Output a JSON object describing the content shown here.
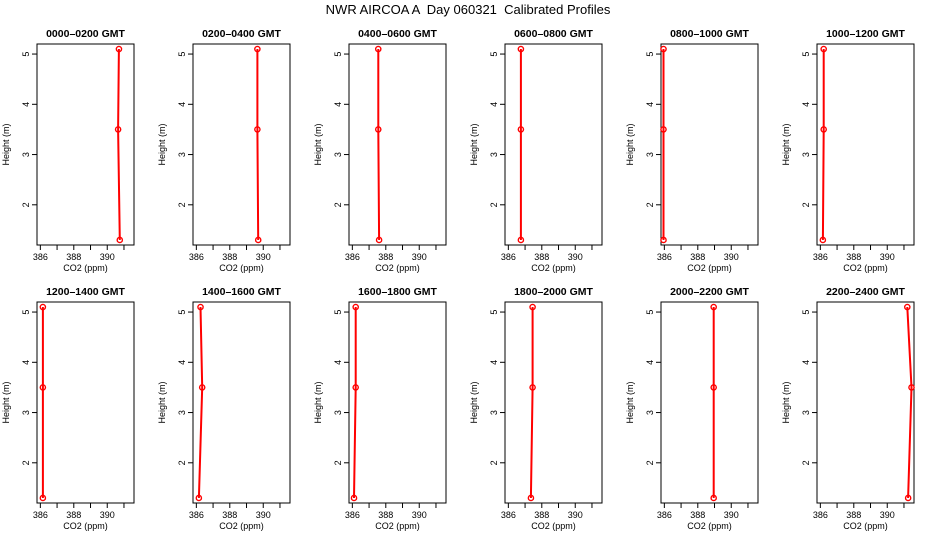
{
  "figure": {
    "title": "NWR AIRCOA A  Day 060321  Calibrated Profiles"
  },
  "colors": {
    "series": "#ff0000",
    "axis": "#000000",
    "background": "#ffffff"
  },
  "chart_data": {
    "type": "line",
    "layout": "2 rows x 6 panels",
    "xlabel": "CO2 (ppm)",
    "ylabel": "Height (m)",
    "xlim": [
      385.8,
      391.6
    ],
    "ylim": [
      1.2,
      5.2
    ],
    "xticks": [
      386,
      388,
      390
    ],
    "xminor": [
      387,
      389,
      391
    ],
    "yticks": [
      2,
      3,
      4,
      5
    ],
    "heights": [
      1.3,
      3.5,
      5.1
    ],
    "panels": [
      {
        "title": "0000–0200 GMT",
        "co2": [
          390.75,
          390.65,
          390.7
        ]
      },
      {
        "title": "0200–0400 GMT",
        "co2": [
          389.7,
          389.65,
          389.65
        ]
      },
      {
        "title": "0400–0600 GMT",
        "co2": [
          387.6,
          387.55,
          387.55
        ]
      },
      {
        "title": "0600–0800 GMT",
        "co2": [
          386.75,
          386.75,
          386.75
        ]
      },
      {
        "title": "0800–1000 GMT",
        "co2": [
          385.95,
          385.95,
          385.95
        ]
      },
      {
        "title": "1000–1200 GMT",
        "co2": [
          386.15,
          386.2,
          386.2
        ]
      },
      {
        "title": "1200–1400 GMT",
        "co2": [
          386.15,
          386.15,
          386.15
        ]
      },
      {
        "title": "1400–1600 GMT",
        "co2": [
          386.15,
          386.35,
          386.25
        ]
      },
      {
        "title": "1600–1800 GMT",
        "co2": [
          386.1,
          386.2,
          386.2
        ]
      },
      {
        "title": "1800–2000 GMT",
        "co2": [
          387.35,
          387.45,
          387.45
        ]
      },
      {
        "title": "2000–2200 GMT",
        "co2": [
          388.95,
          388.95,
          388.95
        ]
      },
      {
        "title": "2200–2400 GMT",
        "co2": [
          391.25,
          391.45,
          391.2
        ]
      }
    ]
  }
}
